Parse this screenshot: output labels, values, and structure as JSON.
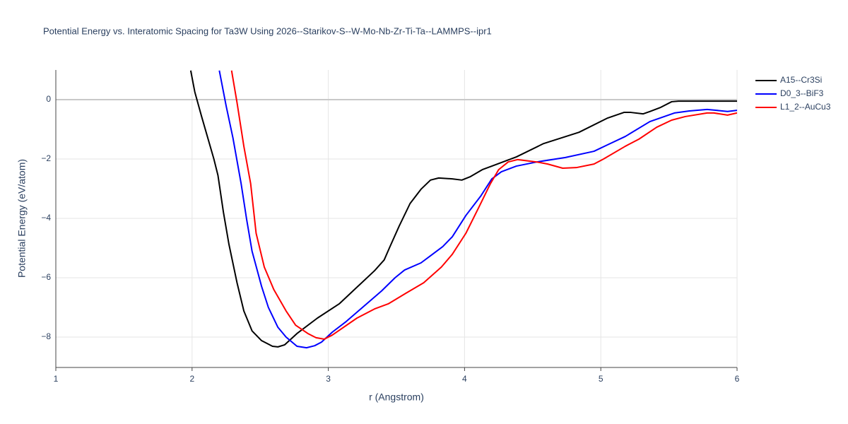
{
  "chart_data": {
    "type": "line",
    "title": "Potential Energy vs. Interatomic Spacing for Ta3W Using 2026--Starikov-S--W-Mo-Nb-Zr-Ti-Ta--LAMMPS--ipr1",
    "x_label": "r (Angstrom)",
    "y_label": "Potential Energy (eV/atom)",
    "xlim": [
      1,
      6
    ],
    "ylim": [
      -9,
      1
    ],
    "xticks": [
      1,
      2,
      3,
      4,
      5,
      6
    ],
    "yticks": [
      {
        "value": -8,
        "label": "−8"
      },
      {
        "value": -6,
        "label": "−6"
      },
      {
        "value": -4,
        "label": "−4"
      },
      {
        "value": -2,
        "label": "−2"
      },
      0
    ],
    "grid": true,
    "series": [
      {
        "name": "A15--Cr3Si",
        "color": "#000000",
        "x": [
          1.99,
          2.02,
          2.07,
          2.16,
          2.19,
          2.23,
          2.27,
          2.33,
          2.38,
          2.44,
          2.51,
          2.59,
          2.63,
          2.68,
          2.77,
          2.92,
          3.08,
          3.18,
          3.34,
          3.41,
          3.45,
          3.52,
          3.6,
          3.68,
          3.75,
          3.81,
          3.91,
          3.98,
          4.04,
          4.13,
          4.2,
          4.38,
          4.58,
          4.84,
          5.05,
          5.17,
          5.22,
          5.31,
          5.36,
          5.44,
          5.52,
          5.57,
          6.0
        ],
        "values": [
          0.98,
          0.26,
          -0.57,
          -2.0,
          -2.55,
          -3.79,
          -4.86,
          -6.17,
          -7.12,
          -7.79,
          -8.12,
          -8.31,
          -8.33,
          -8.26,
          -7.88,
          -7.36,
          -6.88,
          -6.45,
          -5.76,
          -5.4,
          -4.98,
          -4.26,
          -3.5,
          -3.02,
          -2.71,
          -2.64,
          -2.67,
          -2.71,
          -2.6,
          -2.36,
          -2.24,
          -1.93,
          -1.48,
          -1.1,
          -0.62,
          -0.43,
          -0.43,
          -0.48,
          -0.4,
          -0.26,
          -0.07,
          -0.05,
          -0.05
        ]
      },
      {
        "name": "D0_3--BiF3",
        "color": "#0000ff",
        "x": [
          2.2,
          2.25,
          2.3,
          2.36,
          2.4,
          2.44,
          2.51,
          2.56,
          2.63,
          2.69,
          2.77,
          2.84,
          2.9,
          2.95,
          3.03,
          3.13,
          3.39,
          3.49,
          3.56,
          3.68,
          3.75,
          3.84,
          3.91,
          4.01,
          4.12,
          4.2,
          4.27,
          4.38,
          4.53,
          4.74,
          4.95,
          5.05,
          5.18,
          5.36,
          5.54,
          5.65,
          5.78,
          5.85,
          5.93,
          6.0
        ],
        "values": [
          0.98,
          -0.21,
          -1.29,
          -2.83,
          -4.02,
          -5.1,
          -6.29,
          -7.0,
          -7.67,
          -8.0,
          -8.31,
          -8.36,
          -8.29,
          -8.17,
          -7.83,
          -7.48,
          -6.45,
          -6.0,
          -5.74,
          -5.5,
          -5.26,
          -4.95,
          -4.62,
          -3.9,
          -3.24,
          -2.67,
          -2.43,
          -2.24,
          -2.1,
          -1.95,
          -1.74,
          -1.52,
          -1.24,
          -0.74,
          -0.45,
          -0.38,
          -0.33,
          -0.36,
          -0.4,
          -0.36
        ]
      },
      {
        "name": "L1_2--AuCu3",
        "color": "#ff0000",
        "x": [
          2.29,
          2.33,
          2.38,
          2.43,
          2.47,
          2.53,
          2.6,
          2.69,
          2.76,
          2.85,
          2.91,
          2.97,
          3.03,
          3.21,
          3.34,
          3.44,
          3.57,
          3.7,
          3.83,
          3.91,
          4.01,
          4.1,
          4.19,
          4.25,
          4.32,
          4.39,
          4.53,
          4.61,
          4.72,
          4.82,
          4.95,
          5.02,
          5.18,
          5.28,
          5.41,
          5.52,
          5.62,
          5.78,
          5.83,
          5.93,
          6.0
        ],
        "values": [
          0.98,
          -0.1,
          -1.57,
          -2.83,
          -4.5,
          -5.64,
          -6.4,
          -7.12,
          -7.6,
          -7.88,
          -8.02,
          -8.07,
          -7.93,
          -7.36,
          -7.05,
          -6.88,
          -6.52,
          -6.17,
          -5.64,
          -5.21,
          -4.5,
          -3.67,
          -2.83,
          -2.36,
          -2.1,
          -2.02,
          -2.1,
          -2.17,
          -2.31,
          -2.29,
          -2.17,
          -2.0,
          -1.57,
          -1.33,
          -0.93,
          -0.69,
          -0.57,
          -0.45,
          -0.45,
          -0.52,
          -0.45
        ]
      }
    ]
  }
}
